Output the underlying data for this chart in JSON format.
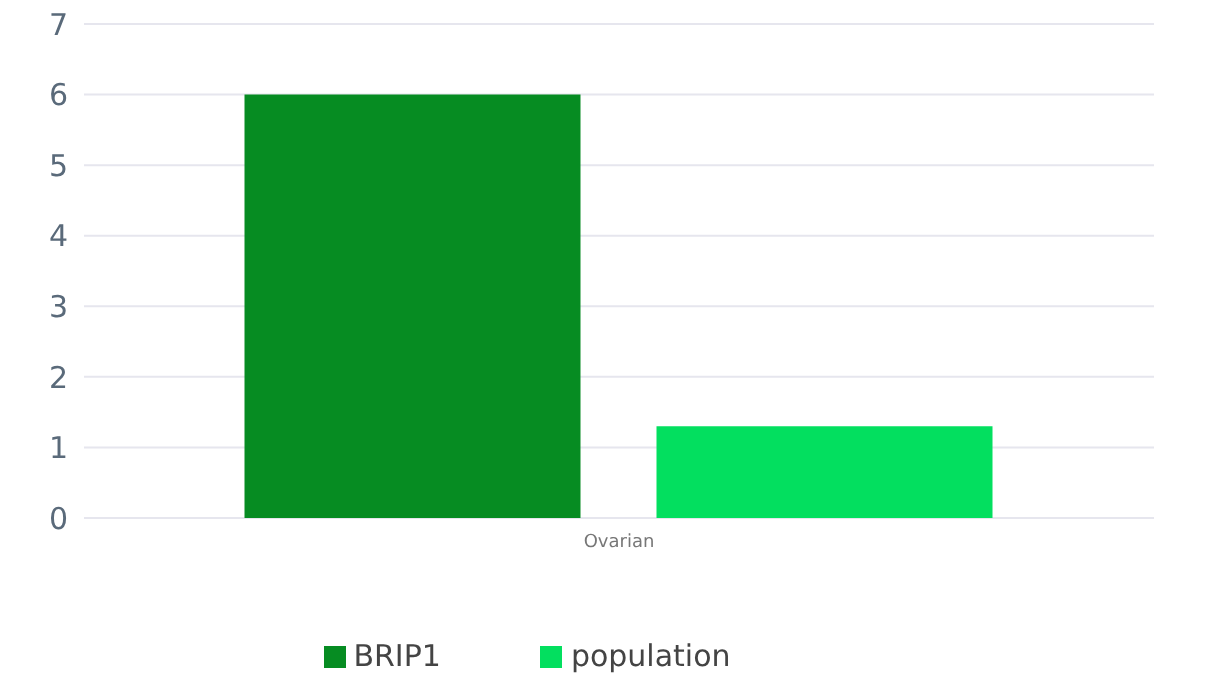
{
  "chart_data": {
    "type": "bar",
    "categories": [
      "Ovarian"
    ],
    "series": [
      {
        "name": "BRIP1",
        "color": "#068c22",
        "values": [
          6.0
        ]
      },
      {
        "name": "population",
        "color": "#03df5f",
        "values": [
          1.3
        ]
      }
    ],
    "ylim": [
      0,
      7
    ],
    "yticks": [
      0,
      1,
      2,
      3,
      4,
      5,
      6,
      7
    ],
    "grid": "y",
    "legend": "bottom"
  }
}
